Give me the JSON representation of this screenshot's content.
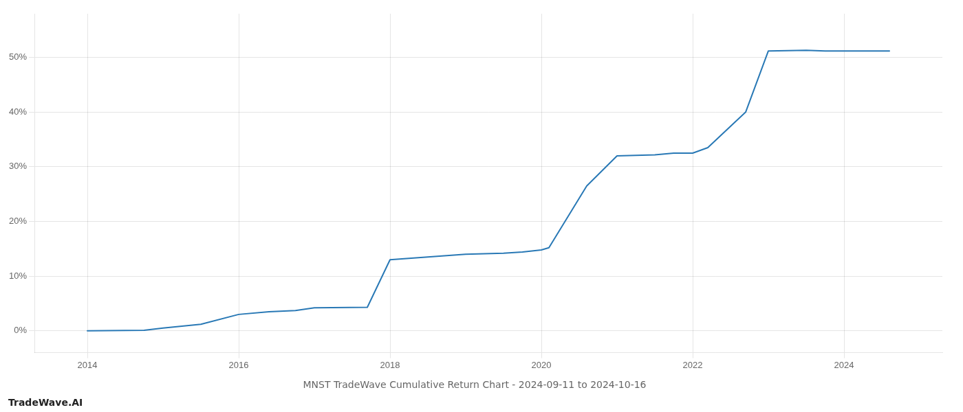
{
  "chart_data": {
    "type": "line",
    "title": "MNST TradeWave Cumulative Return Chart - 2024-09-11 to 2024-10-16",
    "annotations": [
      "TradeWave.AI"
    ],
    "x": [
      2014.0,
      2014.75,
      2015.0,
      2015.5,
      2016.0,
      2016.4,
      2016.75,
      2017.0,
      2017.7,
      2018.0,
      2018.5,
      2019.0,
      2019.5,
      2019.75,
      2020.0,
      2020.1,
      2020.6,
      2021.0,
      2021.5,
      2021.75,
      2022.0,
      2022.2,
      2022.7,
      2023.0,
      2023.5,
      2023.75,
      2024.0,
      2024.6
    ],
    "values": [
      0.0,
      0.1,
      0.5,
      1.2,
      3.0,
      3.5,
      3.7,
      4.2,
      4.3,
      13.0,
      13.5,
      14.0,
      14.2,
      14.4,
      14.8,
      15.2,
      26.5,
      32.0,
      32.2,
      32.5,
      32.5,
      33.5,
      40.0,
      51.2,
      51.3,
      51.2,
      51.2,
      51.2
    ],
    "color": "#2878b5",
    "xlim": [
      2013.3,
      2025.3
    ],
    "xticks": [
      2014,
      2016,
      2018,
      2020,
      2022,
      2024
    ],
    "ylim": [
      -4,
      58
    ],
    "yticks": [
      {
        "value": 0,
        "label": "0%"
      },
      {
        "value": 10,
        "label": "10%"
      },
      {
        "value": 20,
        "label": "20%"
      },
      {
        "value": 30,
        "label": "30%"
      },
      {
        "value": 40,
        "label": "40%"
      },
      {
        "value": 50,
        "label": "50%"
      }
    ],
    "grid": true
  }
}
